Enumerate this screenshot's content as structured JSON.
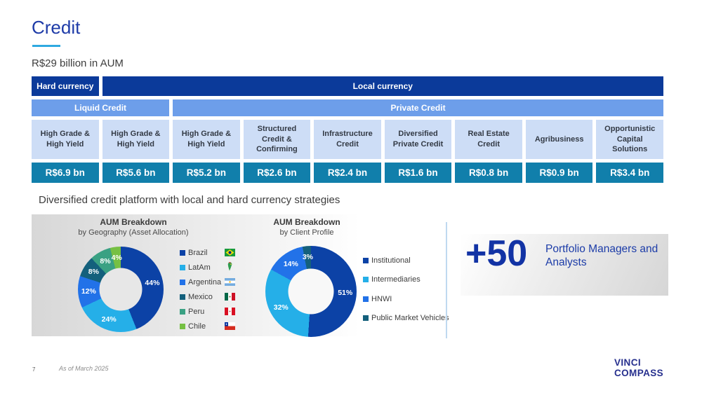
{
  "slide": {
    "title": "Credit",
    "aum_headline": "R$29 billion in AUM",
    "platform_headline": "Diversified credit platform with local and hard currency strategies"
  },
  "table": {
    "currency_row": {
      "hard": "Hard currency",
      "local": "Local currency"
    },
    "type_row": {
      "liquid": "Liquid Credit",
      "private": "Private Credit"
    },
    "columns": [
      {
        "name": "High Grade & High Yield",
        "value": "R$6.9 bn"
      },
      {
        "name": "High Grade & High Yield",
        "value": "R$5.6 bn"
      },
      {
        "name": "High Grade & High Yield",
        "value": "R$5.2 bn"
      },
      {
        "name": "Structured Credit & Confirming",
        "value": "R$2.6 bn"
      },
      {
        "name": "Infrastructure Credit",
        "value": "R$2.4 bn"
      },
      {
        "name": "Diversified Private Credit",
        "value": "R$1.6 bn"
      },
      {
        "name": "Real Estate Credit",
        "value": "R$0.8 bn"
      },
      {
        "name": "Agribusiness",
        "value": "R$0.9 bn"
      },
      {
        "name": "Opportunistic Capital Solutions",
        "value": "R$3.4 bn"
      }
    ]
  },
  "chart_data": [
    {
      "type": "pie",
      "subtype": "donut",
      "title": "AUM Breakdown",
      "subtitle": "by Geography (Asset Allocation)",
      "labels": [
        "Brazil",
        "LatAm",
        "Argentina",
        "Mexico",
        "Peru",
        "Chile"
      ],
      "values": [
        44,
        24,
        12,
        8,
        8,
        4
      ],
      "value_labels": [
        "44%",
        "24%",
        "12%",
        "8%",
        "8%",
        "4%"
      ],
      "colors": [
        "#0c42a6",
        "#25afe8",
        "#2272e8",
        "#14607c",
        "#3aa183",
        "#76c043"
      ],
      "legend_position": "right",
      "legend_icons": [
        "brazil-flag",
        "latam-map",
        "argentina-flag",
        "mexico-flag",
        "peru-flag",
        "chile-flag"
      ],
      "start_angle_deg": 0,
      "direction": "clockwise"
    },
    {
      "type": "pie",
      "subtype": "donut",
      "title": "AUM Breakdown",
      "subtitle": "by Client Profile",
      "labels": [
        "Institutional",
        "Intermediaries",
        "HNWI",
        "Public Market Vehicles"
      ],
      "values": [
        51,
        32,
        14,
        3
      ],
      "value_labels": [
        "51%",
        "32%",
        "14%",
        "3%"
      ],
      "colors": [
        "#0c42a6",
        "#25afe8",
        "#2272e8",
        "#14607c"
      ],
      "legend_position": "right",
      "start_angle_deg": 0,
      "direction": "clockwise"
    }
  ],
  "highlight": {
    "number": "+50",
    "label": "Portfolio Managers and Analysts"
  },
  "footer": {
    "page_number": "7",
    "as_of_note": "As of March 2025",
    "logo_line1": "VINCI",
    "logo_line2": "COMPASS"
  },
  "colors": {
    "header_navy": "#0b3a9a",
    "mid_blue": "#6d9eea",
    "light_blue_cell": "#cdddf6",
    "teal_value": "#117fab",
    "title_blue": "#1e3ba8",
    "accent_cyan": "#2fa9e0",
    "highlight_blue": "#1233a5",
    "logo_navy": "#27308e",
    "divider_blue": "#bfd9f0"
  }
}
